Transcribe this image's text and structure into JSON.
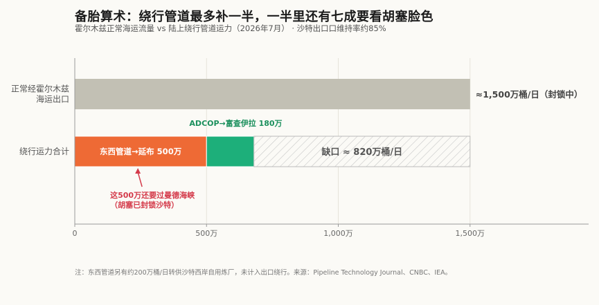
{
  "header": {
    "title": "备胎算术：绕行管道最多补一半，一半里还有七成要看胡塞脸色",
    "subtitle": "霍尔木兹正常海运流量 vs 陆上绕行管道运力（2026年7月） · 沙特出口口维持率约85%"
  },
  "footnote": "注：东西管道另有约200万桶/日转供沙特西岸自用炼厂，未计入出口绕行。来源：Pipeline Technology Journal、CNBC、IEA。",
  "colors": {
    "hormuz": "#c2c0b4",
    "eastwest": "#ee6a35",
    "adcop": "#1daf7a",
    "gap_stroke": "#bbbbbb",
    "annotation": "#d43a4a",
    "adcop_label": "#1a8f5c"
  },
  "chart_data": {
    "type": "bar",
    "orientation": "horizontal",
    "stacked": true,
    "xlim": [
      0,
      1950
    ],
    "xticks": [
      0,
      500,
      1000,
      1500
    ],
    "xtick_labels": [
      "0",
      "500万",
      "1,000万",
      "1,500万"
    ],
    "grid": true,
    "categories": [
      {
        "label_lines": [
          "正常经霍尔木兹",
          "海运出口"
        ]
      },
      {
        "label_lines": [
          "绕行运力合计"
        ]
      }
    ],
    "bars": [
      {
        "category": 0,
        "segments": [
          {
            "name": "hormuz",
            "start": 0,
            "value": 1500,
            "color_key": "hormuz",
            "style": "solid"
          }
        ],
        "end_label": "≈1,500万桶/日（封锁中）"
      },
      {
        "category": 1,
        "segments": [
          {
            "name": "eastwest",
            "start": 0,
            "value": 500,
            "color_key": "eastwest",
            "style": "solid",
            "label": "东西管道→延布 500万"
          },
          {
            "name": "adcop",
            "start": 500,
            "value": 180,
            "color_key": "adcop",
            "style": "solid",
            "label": "ADCOP→富查伊拉 180万"
          },
          {
            "name": "gap",
            "start": 680,
            "value": 820,
            "style": "hatch",
            "label": "缺口 ≈ 820万桶/日"
          }
        ]
      }
    ],
    "annotation": {
      "lines": [
        "这500万还要过曼德海峡",
        "（胡塞已封锁沙特）"
      ],
      "point_x": 250
    }
  }
}
